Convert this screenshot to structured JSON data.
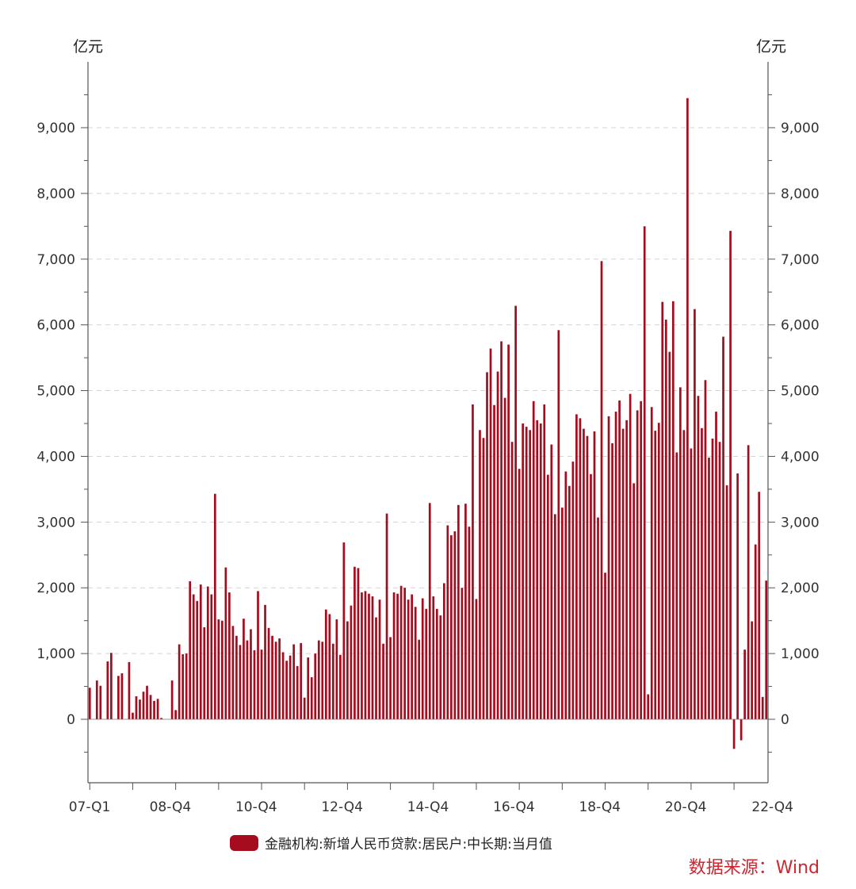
{
  "chart_data": {
    "type": "bar",
    "y_unit_left": "亿元",
    "y_unit_right": "亿元",
    "x_tick_labels": [
      "07-Q1",
      "08-Q4",
      "10-Q4",
      "12-Q4",
      "14-Q4",
      "16-Q4",
      "18-Q4",
      "20-Q4",
      "22-Q4"
    ],
    "y_ticks": [
      0,
      1000,
      2000,
      3000,
      4000,
      5000,
      6000,
      7000,
      8000,
      9000
    ],
    "y_tick_labels": [
      "0",
      "1,000",
      "2,000",
      "3,000",
      "4,000",
      "5,000",
      "6,000",
      "7,000",
      "8,000",
      "9,000"
    ],
    "ylim": [
      -1000,
      9800
    ],
    "grid": true,
    "legend": {
      "label": "金融机构:新增人民币贷款:居民户:中长期:当月值",
      "position": "bottom"
    },
    "series": [
      {
        "name": "金融机构:新增人民币贷款:居民户:中长期:当月值",
        "color": "#a50d1f",
        "values": [
          480,
          0,
          590,
          510,
          0,
          880,
          1010,
          0,
          660,
          700,
          0,
          870,
          100,
          350,
          300,
          420,
          510,
          370,
          280,
          310,
          20,
          0,
          0,
          590,
          140,
          1140,
          990,
          1000,
          2100,
          1900,
          1800,
          2050,
          1400,
          2020,
          1900,
          3430,
          1520,
          1500,
          2310,
          1930,
          1420,
          1270,
          1130,
          1530,
          1200,
          1370,
          1050,
          1950,
          1060,
          1740,
          1390,
          1270,
          1180,
          1230,
          1020,
          890,
          970,
          1140,
          810,
          1160,
          330,
          940,
          640,
          1000,
          1200,
          1180,
          1670,
          1600,
          1150,
          1520,
          980,
          2690,
          1490,
          1730,
          2320,
          2300,
          1930,
          1950,
          1910,
          1870,
          1550,
          1820,
          1150,
          3130,
          1250,
          1930,
          1910,
          2030,
          2000,
          1820,
          1900,
          1710,
          1210,
          1840,
          1680,
          3290,
          1870,
          1680,
          1580,
          2070,
          2950,
          2800,
          2860,
          3260,
          2000,
          3280,
          2930,
          4790,
          1830,
          4400,
          4280,
          5280,
          5640,
          4780,
          5290,
          5750,
          4890,
          5700,
          4220,
          6290,
          3810,
          4500,
          4450,
          4400,
          4840,
          4550,
          4500,
          4790,
          3720,
          4180,
          3120,
          5920,
          3220,
          3770,
          3550,
          3920,
          4640,
          4580,
          4420,
          4310,
          3730,
          4380,
          3070,
          6970,
          2230,
          4610,
          4200,
          4680,
          4850,
          4420,
          4550,
          4950,
          3590,
          4700,
          4840,
          7500,
          380,
          4750,
          4390,
          4510,
          6350,
          6080,
          5590,
          6360,
          4060,
          5050,
          4400,
          9450,
          4120,
          6240,
          4920,
          4430,
          5160,
          3980,
          4270,
          4680,
          4220,
          5820,
          3560,
          7430,
          -450,
          3740,
          -320,
          1060,
          4170,
          1490,
          2660,
          3460,
          340,
          2110
        ]
      }
    ]
  },
  "source_note": "数据来源：Wind"
}
